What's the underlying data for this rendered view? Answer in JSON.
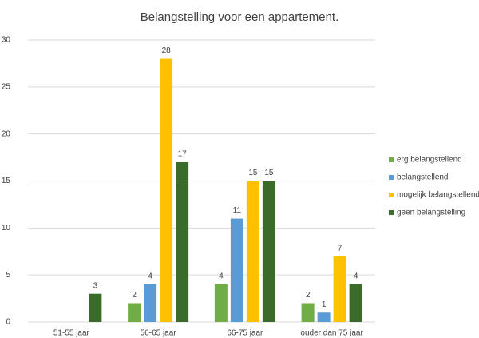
{
  "chart_data": {
    "type": "bar",
    "title": "Belangstelling voor een appartement.",
    "categories": [
      "51-55 jaar",
      "56-65 jaar",
      "66-75 jaar",
      "ouder dan 75 jaar"
    ],
    "series": [
      {
        "name": "erg belangstellend",
        "color": "#70ad47",
        "values": [
          null,
          2,
          4,
          2
        ]
      },
      {
        "name": "belangstellend",
        "color": "#5b9bd5",
        "values": [
          null,
          4,
          11,
          1
        ]
      },
      {
        "name": "mogelijk belangstellend",
        "color": "#ffc000",
        "values": [
          null,
          28,
          15,
          7
        ]
      },
      {
        "name": "geen belangstelling",
        "color": "#3b6b2a",
        "values": [
          3,
          17,
          15,
          4
        ]
      }
    ],
    "ylim": [
      0,
      30
    ],
    "yticks": [
      0,
      5,
      10,
      15,
      20,
      25,
      30
    ],
    "grid": true,
    "legend": "right"
  }
}
